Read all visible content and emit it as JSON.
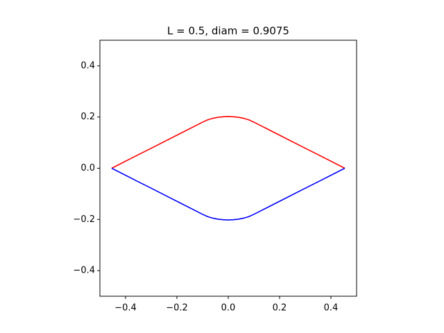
{
  "chart_data": {
    "type": "line",
    "title": "L = 0.5, diam = 0.9075",
    "x": [
      -0.454,
      -0.35,
      -0.3,
      -0.2,
      -0.1,
      -0.08,
      -0.06,
      -0.04,
      -0.02,
      0,
      0.02,
      0.04,
      0.06,
      0.08,
      0.1,
      0.2,
      0.3,
      0.35,
      0.454
    ],
    "series": [
      {
        "color": "#ff0000",
        "values": [
          0,
          0.053,
          0.078,
          0.129,
          0.18,
          0.189,
          0.195,
          0.199,
          0.201,
          0.202,
          0.201,
          0.199,
          0.195,
          0.189,
          0.18,
          0.129,
          0.078,
          0.053,
          0
        ]
      },
      {
        "color": "#0000ff",
        "values": [
          0,
          -0.053,
          -0.078,
          -0.129,
          -0.18,
          -0.189,
          -0.195,
          -0.199,
          -0.201,
          -0.202,
          -0.201,
          -0.199,
          -0.195,
          -0.189,
          -0.18,
          -0.129,
          -0.078,
          -0.053,
          0
        ]
      }
    ],
    "xlim": [
      -0.5,
      0.5
    ],
    "ylim": [
      -0.5,
      0.5
    ],
    "xticks": [
      {
        "value": -0.4,
        "label": "−0.4"
      },
      {
        "value": -0.2,
        "label": "−0.2"
      },
      {
        "value": 0,
        "label": "0.0"
      },
      0.2,
      0.4
    ],
    "yticks": [
      {
        "value": -0.4,
        "label": "−0.4"
      },
      {
        "value": -0.2,
        "label": "−0.2"
      },
      {
        "value": 0,
        "label": "0.0"
      },
      0.2,
      0.4
    ],
    "grid": false
  }
}
